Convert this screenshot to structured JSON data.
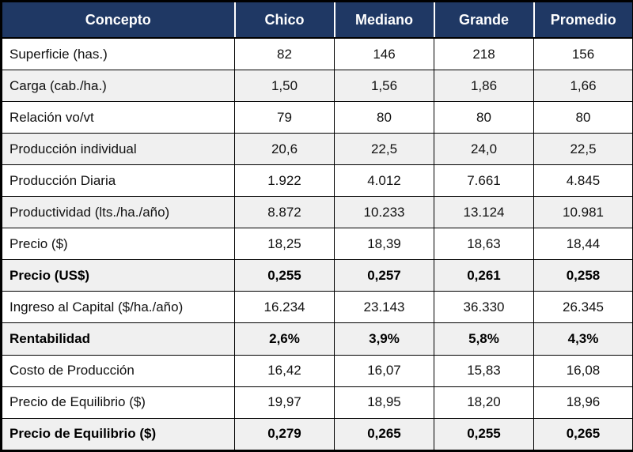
{
  "chart_data": {
    "type": "table",
    "columns": [
      "Concepto",
      "Chico",
      "Mediano",
      "Grande",
      "Promedio"
    ],
    "rows": [
      {
        "label": "Superficie (has.)",
        "values": [
          "82",
          "146",
          "218",
          "156"
        ],
        "bold": false,
        "shaded": false
      },
      {
        "label": "Carga (cab./ha.)",
        "values": [
          "1,50",
          "1,56",
          "1,86",
          "1,66"
        ],
        "bold": false,
        "shaded": true
      },
      {
        "label": "Relación vo/vt",
        "values": [
          "79",
          "80",
          "80",
          "80"
        ],
        "bold": false,
        "shaded": false
      },
      {
        "label": "Producción individual",
        "values": [
          "20,6",
          "22,5",
          "24,0",
          "22,5"
        ],
        "bold": false,
        "shaded": true
      },
      {
        "label": "Producción Diaria",
        "values": [
          "1.922",
          "4.012",
          "7.661",
          "4.845"
        ],
        "bold": false,
        "shaded": false
      },
      {
        "label": "Productividad (lts./ha./año)",
        "values": [
          "8.872",
          "10.233",
          "13.124",
          "10.981"
        ],
        "bold": false,
        "shaded": true
      },
      {
        "label": "Precio ($)",
        "values": [
          "18,25",
          "18,39",
          "18,63",
          "18,44"
        ],
        "bold": false,
        "shaded": false
      },
      {
        "label": "Precio (US$)",
        "values": [
          "0,255",
          "0,257",
          "0,261",
          "0,258"
        ],
        "bold": true,
        "shaded": true
      },
      {
        "label": "Ingreso al Capital ($/ha./año)",
        "values": [
          "16.234",
          "23.143",
          "36.330",
          "26.345"
        ],
        "bold": false,
        "shaded": false
      },
      {
        "label": "Rentabilidad",
        "values": [
          "2,6%",
          "3,9%",
          "5,8%",
          "4,3%"
        ],
        "bold": true,
        "shaded": true
      },
      {
        "label": "Costo de Producción",
        "values": [
          "16,42",
          "16,07",
          "15,83",
          "16,08"
        ],
        "bold": false,
        "shaded": false
      },
      {
        "label": "Precio de Equilibrio ($)",
        "values": [
          "19,97",
          "18,95",
          "18,20",
          "18,96"
        ],
        "bold": false,
        "shaded": false
      },
      {
        "label": "Precio de Equilibrio ($)",
        "values": [
          "0,279",
          "0,265",
          "0,255",
          "0,265"
        ],
        "bold": true,
        "shaded": true
      }
    ],
    "colors": {
      "header_bg": "#1F3864",
      "header_text": "#FFFFFF",
      "shaded_row_bg": "#F0F0F0",
      "row_bg": "#FFFFFF",
      "border": "#000000"
    }
  }
}
